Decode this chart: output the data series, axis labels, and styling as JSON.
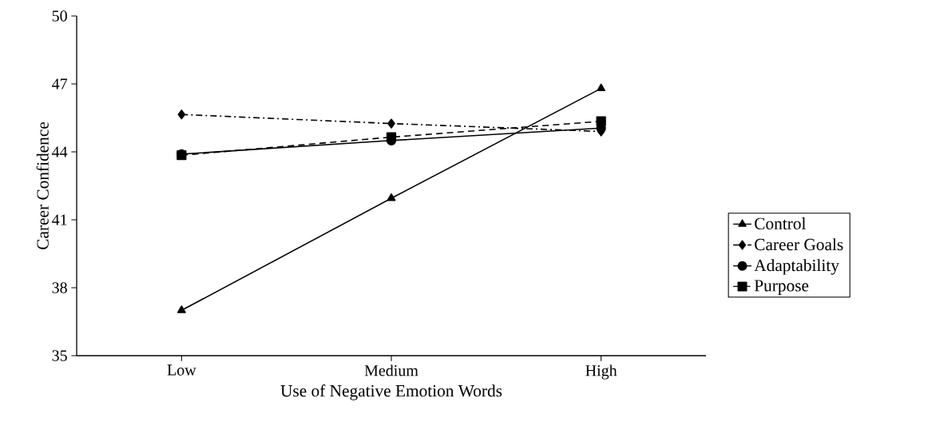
{
  "chart_data": {
    "type": "line",
    "xlabel": "Use of Negative Emotion Words",
    "ylabel": "Career Confidence",
    "categories": [
      "Low",
      "Medium",
      "High"
    ],
    "series": [
      {
        "name": "Control",
        "color": "#000000",
        "marker": "triangle",
        "line_style": "solid",
        "values": [
          37.0,
          41.95,
          46.8
        ]
      },
      {
        "name": "Career Goals",
        "color": "#000000",
        "marker": "diamond",
        "line_style": "dashdot",
        "values": [
          45.65,
          45.25,
          44.9
        ]
      },
      {
        "name": "Adaptability",
        "color": "#000000",
        "marker": "circle",
        "line_style": "solid",
        "values": [
          43.9,
          44.5,
          45.05
        ]
      },
      {
        "name": "Purpose",
        "color": "#000000",
        "marker": "square",
        "line_style": "dashed",
        "values": [
          43.85,
          44.65,
          45.35
        ]
      }
    ],
    "ylim": [
      35,
      50
    ],
    "yticks": [
      35,
      38,
      41,
      44,
      47,
      50
    ],
    "grid": false,
    "legend": "right"
  }
}
